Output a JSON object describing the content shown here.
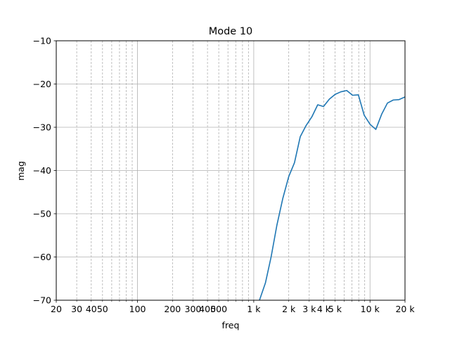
{
  "chart_data": {
    "type": "line",
    "title": "Mode 10",
    "xlabel": "freq",
    "ylabel": "mag",
    "xscale": "log",
    "xlim": [
      20,
      20000
    ],
    "ylim": [
      -70,
      -10
    ],
    "grid": true,
    "x_major_ticks": [
      {
        "value": 20,
        "label": "20"
      },
      {
        "value": 100,
        "label": "100"
      },
      {
        "value": 1000,
        "label": "1 k"
      },
      {
        "value": 10000,
        "label": "10 k"
      },
      {
        "value": 20000,
        "label": "20 k"
      }
    ],
    "x_minor_ticks": [
      {
        "value": 30,
        "label": "30"
      },
      {
        "value": 40,
        "label": "40"
      },
      {
        "value": 50,
        "label": "50"
      },
      {
        "value": 60,
        "label": ""
      },
      {
        "value": 70,
        "label": ""
      },
      {
        "value": 80,
        "label": ""
      },
      {
        "value": 90,
        "label": ""
      },
      {
        "value": 200,
        "label": "200"
      },
      {
        "value": 300,
        "label": "300"
      },
      {
        "value": 400,
        "label": "400"
      },
      {
        "value": 500,
        "label": "500"
      },
      {
        "value": 600,
        "label": ""
      },
      {
        "value": 700,
        "label": ""
      },
      {
        "value": 800,
        "label": ""
      },
      {
        "value": 900,
        "label": ""
      },
      {
        "value": 2000,
        "label": "2 k"
      },
      {
        "value": 3000,
        "label": "3 k"
      },
      {
        "value": 4000,
        "label": "4 k"
      },
      {
        "value": 5000,
        "label": "5 k"
      },
      {
        "value": 6000,
        "label": ""
      },
      {
        "value": 7000,
        "label": ""
      },
      {
        "value": 8000,
        "label": ""
      },
      {
        "value": 9000,
        "label": ""
      }
    ],
    "y_ticks": [
      {
        "value": -10,
        "label": "−10"
      },
      {
        "value": -20,
        "label": "−20"
      },
      {
        "value": -30,
        "label": "−30"
      },
      {
        "value": -40,
        "label": "−40"
      },
      {
        "value": -50,
        "label": "−50"
      },
      {
        "value": -60,
        "label": "−60"
      },
      {
        "value": -70,
        "label": "−70"
      }
    ],
    "series": [
      {
        "color": "#1f77b4",
        "x": [
          1000,
          1120,
          1260,
          1410,
          1580,
          1780,
          2000,
          2240,
          2510,
          2820,
          3160,
          3550,
          3980,
          4470,
          5010,
          5620,
          6310,
          7080,
          7940,
          8910,
          10000,
          11220,
          12590,
          14130,
          15850,
          17780,
          19950
        ],
        "y": [
          -74.5,
          -70.0,
          -66.0,
          -60.0,
          -52.7,
          -46.4,
          -41.4,
          -38.2,
          -32.2,
          -29.6,
          -27.6,
          -24.8,
          -25.2,
          -23.5,
          -22.4,
          -21.8,
          -21.5,
          -22.6,
          -22.5,
          -27.2,
          -29.3,
          -30.5,
          -27.0,
          -24.4,
          -23.7,
          -23.6,
          -23.0
        ]
      }
    ]
  }
}
